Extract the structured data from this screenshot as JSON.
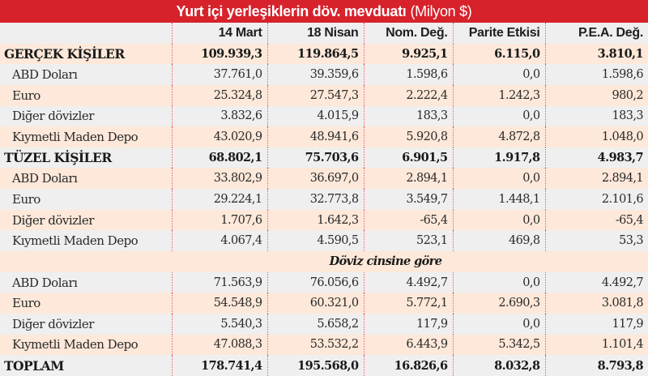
{
  "title": {
    "bold": "Yurt içi yerleşiklerin döv. mevduatı",
    "light": "(Milyon $)",
    "color": "#d7222c"
  },
  "columns": [
    "",
    "14 Mart",
    "18 Nisan",
    "Nom. Değ.",
    "Parite Etkisi",
    "P.E.A. Değ."
  ],
  "rows": [
    {
      "label": "GERÇEK KİŞİLER",
      "values": [
        "109.939,3",
        "119.864,5",
        "9.925,1",
        "6.115,0",
        "3.810,1"
      ]
    },
    {
      "label": "ABD Doları",
      "values": [
        "37.761,0",
        "39.359,6",
        "1.598,6",
        "0,0",
        "1.598,6"
      ]
    },
    {
      "label": "Euro",
      "values": [
        "25.324,8",
        "27.547,3",
        "2.222,4",
        "1.242,3",
        "980,2"
      ]
    },
    {
      "label": "Diğer dövizler",
      "values": [
        "3.832,6",
        "4.015,9",
        "183,3",
        "0,0",
        "183,3"
      ]
    },
    {
      "label": "Kıymetli Maden Depo",
      "values": [
        "43.020,9",
        "48.941,6",
        "5.920,8",
        "4.872,8",
        "1.048,0"
      ]
    },
    {
      "label": "TÜZEL KİŞİLER",
      "values": [
        "68.802,1",
        "75.703,6",
        "6.901,5",
        "1.917,8",
        "4.983,7"
      ]
    },
    {
      "label": "ABD Doları",
      "values": [
        "33.802,9",
        "36.697,0",
        "2.894,1",
        "0,0",
        "2.894,1"
      ]
    },
    {
      "label": "Euro",
      "values": [
        "29.224,1",
        "32.773,8",
        "3.549,7",
        "1.448,1",
        "2.101,6"
      ]
    },
    {
      "label": "Diğer dövizler",
      "values": [
        "1.707,6",
        "1.642,3",
        "-65,4",
        "0,0",
        "-65,4"
      ]
    },
    {
      "label": "Kıymetli Maden Depo",
      "values": [
        "4.067,4",
        "4.590,5",
        "523,1",
        "469,8",
        "53,3"
      ]
    },
    {
      "section": "Döviz cinsine göre"
    },
    {
      "label": "ABD Doları",
      "values": [
        "71.563,9",
        "76.056,6",
        "4.492,7",
        "0,0",
        "4.492,7"
      ]
    },
    {
      "label": "Euro",
      "values": [
        "54.548,9",
        "60.321,0",
        "5.772,1",
        "2.690,3",
        "3.081,8"
      ]
    },
    {
      "label": "Diğer dövizler",
      "values": [
        "5.540,3",
        "5.658,2",
        "117,9",
        "0,0",
        "117,9"
      ]
    },
    {
      "label": "Kıymetli Maden Depo",
      "values": [
        "47.088,3",
        "53.532,2",
        "6.443,9",
        "5.342,5",
        "1.101,4"
      ]
    },
    {
      "label": "TOPLAM",
      "values": [
        "178.741,4",
        "195.568,0",
        "16.826,6",
        "8.032,8",
        "8.793,8"
      ]
    }
  ],
  "colors": {
    "title_bg": "#d7222c",
    "row_gray": "#efefef",
    "row_peach": "#fde8d9",
    "divider": "#e0505a"
  }
}
